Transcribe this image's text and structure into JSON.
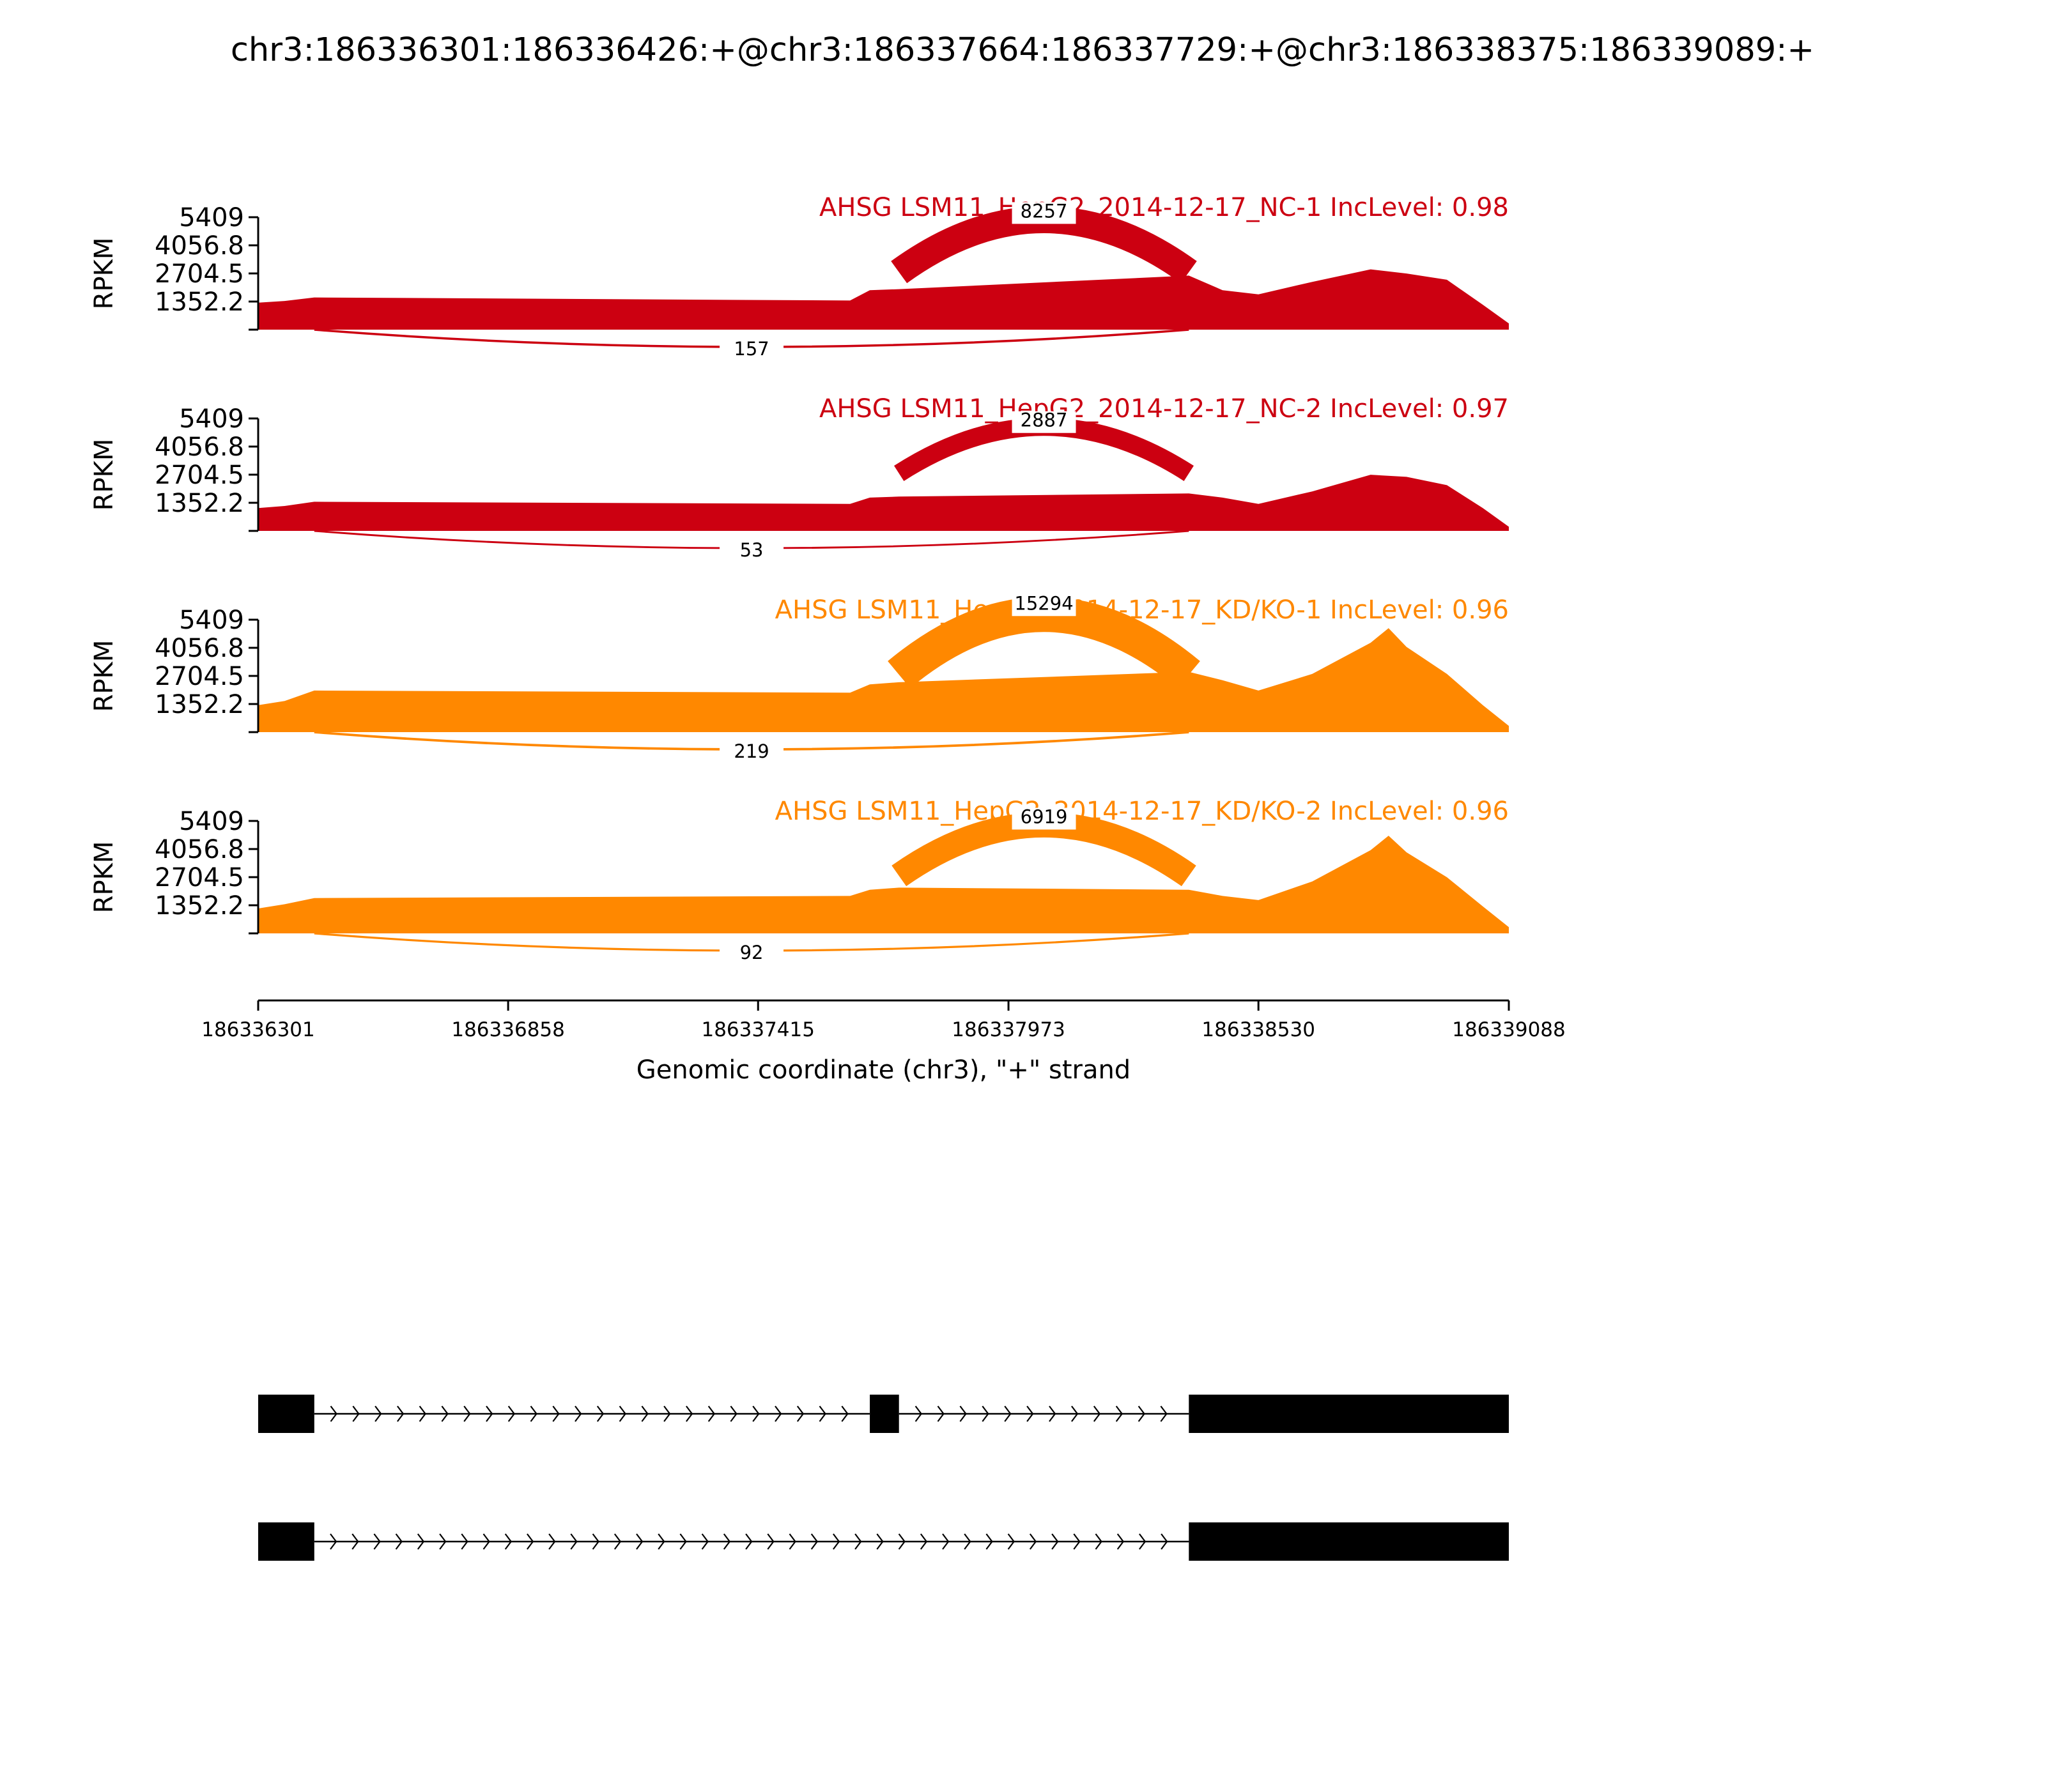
{
  "title": "chr3:186336301:186336426:+@chr3:186337664:186337729:+@chr3:186338375:186339089:+",
  "chart_data": {
    "type": "area",
    "title": "chr3:186336301:186336426:+@chr3:186337664:186337729:+@chr3:186338375:186339089:+",
    "xlabel": "Genomic coordinate (chr3), \"+\" strand",
    "ylabel": "RPKM",
    "xlim": [
      186336301,
      186339088
    ],
    "ylim": [
      0,
      5409
    ],
    "x_ticks": [
      "186336301",
      "186336858",
      "186337415",
      "186337973",
      "186338530",
      "186339088"
    ],
    "y_ticks": [
      "1352.2",
      "2704.5",
      "4056.8",
      "5409"
    ],
    "exons": [
      {
        "start": 186336301,
        "end": 186336426
      },
      {
        "start": 186337664,
        "end": 186337729
      },
      {
        "start": 186338375,
        "end": 186339089
      }
    ],
    "isoforms": [
      {
        "exons": [
          [
            186336301,
            186336426
          ],
          [
            186337664,
            186337729
          ],
          [
            186338375,
            186339088
          ]
        ]
      },
      {
        "exons": [
          [
            186336301,
            186336426
          ],
          [
            186338375,
            186339088
          ]
        ]
      }
    ],
    "series": [
      {
        "name": "AHSG LSM11_HepG2_2014-12-17_NC-1 IncLevel: 0.98",
        "color": "#cc0011",
        "junctions": [
          {
            "from": 186337729,
            "to": 186338375,
            "count": "8257",
            "side": "above"
          },
          {
            "from": 186336426,
            "to": 186338375,
            "count": "157",
            "side": "below"
          }
        ],
        "coverage": [
          [
            186336301,
            1300
          ],
          [
            186336360,
            1380
          ],
          [
            186336426,
            1550
          ],
          [
            186337620,
            1400
          ],
          [
            186337664,
            1900
          ],
          [
            186337729,
            1950
          ],
          [
            186338375,
            2600
          ],
          [
            186338450,
            1900
          ],
          [
            186338530,
            1700
          ],
          [
            186338650,
            2300
          ],
          [
            186338780,
            2900
          ],
          [
            186338860,
            2700
          ],
          [
            186338950,
            2400
          ],
          [
            186339030,
            1200
          ],
          [
            186339088,
            300
          ]
        ]
      },
      {
        "name": "AHSG LSM11_HepG2_2014-12-17_NC-2 IncLevel: 0.97",
        "color": "#cc0011",
        "junctions": [
          {
            "from": 186337729,
            "to": 186338375,
            "count": "2887",
            "side": "above"
          },
          {
            "from": 186336426,
            "to": 186338375,
            "count": "53",
            "side": "below"
          }
        ],
        "coverage": [
          [
            186336301,
            1100
          ],
          [
            186336360,
            1200
          ],
          [
            186336426,
            1400
          ],
          [
            186337620,
            1300
          ],
          [
            186337664,
            1600
          ],
          [
            186337729,
            1650
          ],
          [
            186338375,
            1800
          ],
          [
            186338450,
            1600
          ],
          [
            186338530,
            1300
          ],
          [
            186338650,
            1900
          ],
          [
            186338780,
            2700
          ],
          [
            186338860,
            2600
          ],
          [
            186338950,
            2200
          ],
          [
            186339030,
            1100
          ],
          [
            186339088,
            200
          ]
        ]
      },
      {
        "name": "AHSG LSM11_HepG2_2014-12-17_KD/KO-1 IncLevel: 0.96",
        "color": "#ff8800",
        "junctions": [
          {
            "from": 186337729,
            "to": 186338375,
            "count": "15294",
            "side": "above"
          },
          {
            "from": 186336426,
            "to": 186338375,
            "count": "219",
            "side": "below"
          }
        ],
        "coverage": [
          [
            186336301,
            1300
          ],
          [
            186336360,
            1500
          ],
          [
            186336426,
            2000
          ],
          [
            186337620,
            1900
          ],
          [
            186337664,
            2300
          ],
          [
            186337729,
            2400
          ],
          [
            186338375,
            2900
          ],
          [
            186338450,
            2500
          ],
          [
            186338530,
            2000
          ],
          [
            186338650,
            2800
          ],
          [
            186338780,
            4300
          ],
          [
            186338820,
            5000
          ],
          [
            186338860,
            4100
          ],
          [
            186338950,
            2800
          ],
          [
            186339030,
            1300
          ],
          [
            186339088,
            300
          ]
        ]
      },
      {
        "name": "AHSG LSM11_HepG2_2014-12-17_KD/KO-2 IncLevel: 0.96",
        "color": "#ff8800",
        "junctions": [
          {
            "from": 186337729,
            "to": 186338375,
            "count": "6919",
            "side": "above"
          },
          {
            "from": 186336426,
            "to": 186338375,
            "count": "92",
            "side": "below"
          }
        ],
        "coverage": [
          [
            186336301,
            1200
          ],
          [
            186336360,
            1400
          ],
          [
            186336426,
            1700
          ],
          [
            186337620,
            1800
          ],
          [
            186337664,
            2100
          ],
          [
            186337729,
            2200
          ],
          [
            186338375,
            2100
          ],
          [
            186338450,
            1800
          ],
          [
            186338530,
            1600
          ],
          [
            186338650,
            2500
          ],
          [
            186338780,
            4000
          ],
          [
            186338820,
            4700
          ],
          [
            186338860,
            3900
          ],
          [
            186338950,
            2700
          ],
          [
            186339030,
            1300
          ],
          [
            186339088,
            300
          ]
        ]
      }
    ]
  }
}
